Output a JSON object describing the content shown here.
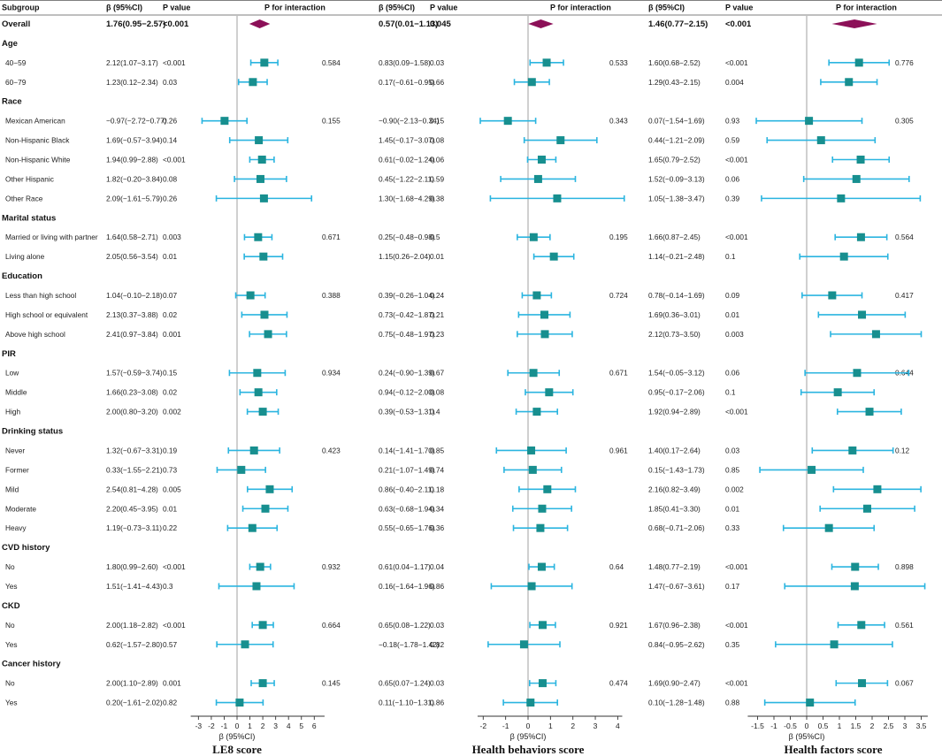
{
  "headers": {
    "subgroup": "Subgroup",
    "beta": "β  (95%CI)",
    "pvalue": "P value",
    "interaction": "P for interaction"
  },
  "overall_label": "Overall",
  "x_axis_label": "β (95%CI)",
  "colors": {
    "marker": "#178f8f",
    "ci": "#2bb5e0",
    "diamond": "#8c1058",
    "refline": "#b0b0b0"
  },
  "chart_data": [
    {
      "type": "forest",
      "title": "LE8 score",
      "xlabel": "β (95%CI)",
      "xlim": [
        -3.6,
        6.8
      ],
      "ticks": [
        -3,
        -2,
        -1,
        0,
        1,
        2,
        3,
        4,
        5,
        6
      ],
      "tick_labels": [
        "-3",
        "-2",
        "-1",
        "0",
        "1",
        "2",
        "3",
        "4",
        "5",
        "6"
      ],
      "overall": {
        "text": "1.76(0.95−2.57)",
        "p": "<0.001",
        "est": 1.76,
        "lo": 0.95,
        "hi": 2.57
      },
      "rows": [
        {
          "text": "2.12(1.07−3.17)",
          "p": "<0.001",
          "pint": "0.584",
          "est": 2.12,
          "lo": 1.07,
          "hi": 3.17
        },
        {
          "text": "1.23(0.12−2.34)",
          "p": "0.03",
          "pint": "",
          "est": 1.23,
          "lo": 0.12,
          "hi": 2.34
        },
        {
          "text": "−0.97(−2.72−0.77)",
          "p": "0.26",
          "pint": "0.155",
          "est": -0.97,
          "lo": -2.72,
          "hi": 0.77
        },
        {
          "text": "1.69(−0.57−3.94)",
          "p": "0.14",
          "pint": "",
          "est": 1.69,
          "lo": -0.57,
          "hi": 3.94
        },
        {
          "text": "1.94(0.99−2.88)",
          "p": "<0.001",
          "pint": "",
          "est": 1.94,
          "lo": 0.99,
          "hi": 2.88
        },
        {
          "text": "1.82(−0.20−3.84)",
          "p": "0.08",
          "pint": "",
          "est": 1.82,
          "lo": -0.2,
          "hi": 3.84
        },
        {
          "text": "2.09(−1.61−5.79)",
          "p": "0.26",
          "pint": "",
          "est": 2.09,
          "lo": -1.61,
          "hi": 5.79
        },
        {
          "text": "1.64(0.58−2.71)",
          "p": "0.003",
          "pint": "0.671",
          "est": 1.64,
          "lo": 0.58,
          "hi": 2.71
        },
        {
          "text": "2.05(0.56−3.54)",
          "p": "0.01",
          "pint": "",
          "est": 2.05,
          "lo": 0.56,
          "hi": 3.54
        },
        {
          "text": "1.04(−0.10−2.18)",
          "p": "0.07",
          "pint": "0.388",
          "est": 1.04,
          "lo": -0.1,
          "hi": 2.18
        },
        {
          "text": "2.13(0.37−3.88)",
          "p": "0.02",
          "pint": "",
          "est": 2.13,
          "lo": 0.37,
          "hi": 3.88
        },
        {
          "text": "2.41(0.97−3.84)",
          "p": "0.001",
          "pint": "",
          "est": 2.41,
          "lo": 0.97,
          "hi": 3.84
        },
        {
          "text": "1.57(−0.59−3.74)",
          "p": "0.15",
          "pint": "0.934",
          "est": 1.57,
          "lo": -0.59,
          "hi": 3.74
        },
        {
          "text": "1.66(0.23−3.08)",
          "p": "0.02",
          "pint": "",
          "est": 1.66,
          "lo": 0.23,
          "hi": 3.08
        },
        {
          "text": "2.00(0.80−3.20)",
          "p": "0.002",
          "pint": "",
          "est": 2.0,
          "lo": 0.8,
          "hi": 3.2
        },
        {
          "text": "1.32(−0.67−3.31)",
          "p": "0.19",
          "pint": "0.423",
          "est": 1.32,
          "lo": -0.67,
          "hi": 3.31
        },
        {
          "text": "0.33(−1.55−2.21)",
          "p": "0.73",
          "pint": "",
          "est": 0.33,
          "lo": -1.55,
          "hi": 2.21
        },
        {
          "text": "2.54(0.81−4.28)",
          "p": "0.005",
          "pint": "",
          "est": 2.54,
          "lo": 0.81,
          "hi": 4.28
        },
        {
          "text": "2.20(0.45−3.95)",
          "p": "0.01",
          "pint": "",
          "est": 2.2,
          "lo": 0.45,
          "hi": 3.95
        },
        {
          "text": "1.19(−0.73−3.11)",
          "p": "0.22",
          "pint": "",
          "est": 1.19,
          "lo": -0.73,
          "hi": 3.11
        },
        {
          "text": "1.80(0.99−2.60)",
          "p": "<0.001",
          "pint": "0.932",
          "est": 1.8,
          "lo": 0.99,
          "hi": 2.6
        },
        {
          "text": "1.51(−1.41−4.43)",
          "p": "0.3",
          "pint": "",
          "est": 1.51,
          "lo": -1.41,
          "hi": 4.43
        },
        {
          "text": "2.00(1.18−2.82)",
          "p": "<0.001",
          "pint": "0.664",
          "est": 2.0,
          "lo": 1.18,
          "hi": 2.82
        },
        {
          "text": "0.62(−1.57−2.80)",
          "p": "0.57",
          "pint": "",
          "est": 0.62,
          "lo": -1.57,
          "hi": 2.8
        },
        {
          "text": "2.00(1.10−2.89)",
          "p": "0.001",
          "pint": "0.145",
          "est": 2.0,
          "lo": 1.1,
          "hi": 2.89
        },
        {
          "text": "0.20(−1.61−2.02)",
          "p": "0.82",
          "pint": "",
          "est": 0.2,
          "lo": -1.61,
          "hi": 2.02
        }
      ]
    },
    {
      "type": "forest",
      "title": "Health behaviors score",
      "xlabel": "β (95%CI)",
      "xlim": [
        -2.25,
        4.2
      ],
      "ticks": [
        -2,
        -1,
        0,
        1,
        2,
        3,
        4
      ],
      "tick_labels": [
        "-2",
        "-1",
        "0",
        "1",
        "2",
        "3",
        "4"
      ],
      "overall": {
        "text": "0.57(0.01−1.13)",
        "p": "0.045",
        "est": 0.57,
        "lo": 0.01,
        "hi": 1.13
      },
      "rows": [
        {
          "text": "0.83(0.09−1.58)",
          "p": "0.03",
          "pint": "0.533",
          "est": 0.83,
          "lo": 0.09,
          "hi": 1.58
        },
        {
          "text": "0.17(−0.61−0.95)",
          "p": "0.66",
          "pint": "",
          "est": 0.17,
          "lo": -0.61,
          "hi": 0.95
        },
        {
          "text": "−0.90(−2.13−0.34)",
          "p": "0.15",
          "pint": "0.343",
          "est": -0.9,
          "lo": -2.13,
          "hi": 0.34
        },
        {
          "text": "1.45(−0.17−3.07)",
          "p": "0.08",
          "pint": "",
          "est": 1.45,
          "lo": -0.17,
          "hi": 3.07
        },
        {
          "text": "0.61(−0.02−1.24)",
          "p": "0.06",
          "pint": "",
          "est": 0.61,
          "lo": -0.02,
          "hi": 1.24
        },
        {
          "text": "0.45(−1.22−2.11)",
          "p": "0.59",
          "pint": "",
          "est": 0.45,
          "lo": -1.22,
          "hi": 2.11
        },
        {
          "text": "1.30(−1.68−4.29)",
          "p": "0.38",
          "pint": "",
          "est": 1.3,
          "lo": -1.68,
          "hi": 4.29
        },
        {
          "text": "0.25(−0.48−0.98)",
          "p": "0.5",
          "pint": "0.195",
          "est": 0.25,
          "lo": -0.48,
          "hi": 0.98
        },
        {
          "text": "1.15(0.26−2.04)",
          "p": "0.01",
          "pint": "",
          "est": 1.15,
          "lo": 0.26,
          "hi": 2.04
        },
        {
          "text": "0.39(−0.26−1.04)",
          "p": "0.24",
          "pint": "0.724",
          "est": 0.39,
          "lo": -0.26,
          "hi": 1.04
        },
        {
          "text": "0.73(−0.42−1.87)",
          "p": "0.21",
          "pint": "",
          "est": 0.73,
          "lo": -0.42,
          "hi": 1.87
        },
        {
          "text": "0.75(−0.48−1.97)",
          "p": "0.23",
          "pint": "",
          "est": 0.75,
          "lo": -0.48,
          "hi": 1.97
        },
        {
          "text": "0.24(−0.90−1.39)",
          "p": "0.67",
          "pint": "0.671",
          "est": 0.24,
          "lo": -0.9,
          "hi": 1.39
        },
        {
          "text": "0.94(−0.12−2.00)",
          "p": "0.08",
          "pint": "",
          "est": 0.94,
          "lo": -0.12,
          "hi": 2.0
        },
        {
          "text": "0.39(−0.53−1.31)",
          "p": "0.4",
          "pint": "",
          "est": 0.39,
          "lo": -0.53,
          "hi": 1.31
        },
        {
          "text": "0.14(−1.41−1.70)",
          "p": "0.85",
          "pint": "0.961",
          "est": 0.14,
          "lo": -1.41,
          "hi": 1.7
        },
        {
          "text": "0.21(−1.07−1.49)",
          "p": "0.74",
          "pint": "",
          "est": 0.21,
          "lo": -1.07,
          "hi": 1.49
        },
        {
          "text": "0.86(−0.40−2.11)",
          "p": "0.18",
          "pint": "",
          "est": 0.86,
          "lo": -0.4,
          "hi": 2.11
        },
        {
          "text": "0.63(−0.68−1.94)",
          "p": "0.34",
          "pint": "",
          "est": 0.63,
          "lo": -0.68,
          "hi": 1.94
        },
        {
          "text": "0.55(−0.65−1.76)",
          "p": "0.36",
          "pint": "",
          "est": 0.55,
          "lo": -0.65,
          "hi": 1.76
        },
        {
          "text": "0.61(0.04−1.17)",
          "p": "0.04",
          "pint": "0.64",
          "est": 0.61,
          "lo": 0.04,
          "hi": 1.17
        },
        {
          "text": "0.16(−1.64−1.96)",
          "p": "0.86",
          "pint": "",
          "est": 0.16,
          "lo": -1.64,
          "hi": 1.96
        },
        {
          "text": "0.65(0.08−1.22)",
          "p": "0.03",
          "pint": "0.921",
          "est": 0.65,
          "lo": 0.08,
          "hi": 1.22
        },
        {
          "text": "−0.18(−1.78−1.42)",
          "p": "0.82",
          "pint": "",
          "est": -0.18,
          "lo": -1.78,
          "hi": 1.42
        },
        {
          "text": "0.65(0.07−1.24)",
          "p": "0.03",
          "pint": "0.474",
          "est": 0.65,
          "lo": 0.07,
          "hi": 1.24
        },
        {
          "text": "0.11(−1.10−1.31)",
          "p": "0.86",
          "pint": "",
          "est": 0.11,
          "lo": -1.1,
          "hi": 1.31
        }
      ]
    },
    {
      "type": "forest",
      "title": "Health factors score",
      "xlabel": "β (95%CI)",
      "xlim": [
        -1.8,
        3.7
      ],
      "ticks": [
        -1.5,
        -1,
        -0.5,
        0,
        0.5,
        1,
        1.5,
        2,
        2.5,
        3,
        3.5
      ],
      "tick_labels": [
        "-1.5",
        "-1",
        "-0.5",
        "0",
        "0.5",
        "1",
        "1.5",
        "2",
        "2.5",
        "3",
        "3.5"
      ],
      "overall": {
        "text": "1.46(0.77−2.15)",
        "p": "<0.001",
        "est": 1.46,
        "lo": 0.77,
        "hi": 2.15
      },
      "rows": [
        {
          "text": "1.60(0.68−2.52)",
          "p": "<0.001",
          "pint": "0.776",
          "est": 1.6,
          "lo": 0.68,
          "hi": 2.52
        },
        {
          "text": "1.29(0.43−2.15)",
          "p": "0.004",
          "pint": "",
          "est": 1.29,
          "lo": 0.43,
          "hi": 2.15
        },
        {
          "text": "0.07(−1.54−1.69)",
          "p": "0.93",
          "pint": "0.305",
          "est": 0.07,
          "lo": -1.54,
          "hi": 1.69
        },
        {
          "text": "0.44(−1.21−2.09)",
          "p": "0.59",
          "pint": "",
          "est": 0.44,
          "lo": -1.21,
          "hi": 2.09
        },
        {
          "text": "1.65(0.79−2.52)",
          "p": "<0.001",
          "pint": "",
          "est": 1.65,
          "lo": 0.79,
          "hi": 2.52
        },
        {
          "text": "1.52(−0.09−3.13)",
          "p": "0.06",
          "pint": "",
          "est": 1.52,
          "lo": -0.09,
          "hi": 3.13
        },
        {
          "text": "1.05(−1.38−3.47)",
          "p": "0.39",
          "pint": "",
          "est": 1.05,
          "lo": -1.38,
          "hi": 3.47
        },
        {
          "text": "1.66(0.87−2.45)",
          "p": "<0.001",
          "pint": "0.564",
          "est": 1.66,
          "lo": 0.87,
          "hi": 2.45
        },
        {
          "text": "1.14(−0.21−2.48)",
          "p": "0.1",
          "pint": "",
          "est": 1.14,
          "lo": -0.21,
          "hi": 2.48
        },
        {
          "text": "0.78(−0.14−1.69)",
          "p": "0.09",
          "pint": "0.417",
          "est": 0.78,
          "lo": -0.14,
          "hi": 1.69
        },
        {
          "text": "1.69(0.36−3.01)",
          "p": "0.01",
          "pint": "",
          "est": 1.69,
          "lo": 0.36,
          "hi": 3.01
        },
        {
          "text": "2.12(0.73−3.50)",
          "p": "0.003",
          "pint": "",
          "est": 2.12,
          "lo": 0.73,
          "hi": 3.5
        },
        {
          "text": "1.54(−0.05−3.12)",
          "p": "0.06",
          "pint": "0.644",
          "est": 1.54,
          "lo": -0.05,
          "hi": 3.12
        },
        {
          "text": "0.95(−0.17−2.06)",
          "p": "0.1",
          "pint": "",
          "est": 0.95,
          "lo": -0.17,
          "hi": 2.06
        },
        {
          "text": "1.92(0.94−2.89)",
          "p": "<0.001",
          "pint": "",
          "est": 1.92,
          "lo": 0.94,
          "hi": 2.89
        },
        {
          "text": "1.40(0.17−2.64)",
          "p": "0.03",
          "pint": "0.12",
          "est": 1.4,
          "lo": 0.17,
          "hi": 2.64
        },
        {
          "text": "0.15(−1.43−1.73)",
          "p": "0.85",
          "pint": "",
          "est": 0.15,
          "lo": -1.43,
          "hi": 1.73
        },
        {
          "text": "2.16(0.82−3.49)",
          "p": "0.002",
          "pint": "",
          "est": 2.16,
          "lo": 0.82,
          "hi": 3.49
        },
        {
          "text": "1.85(0.41−3.30)",
          "p": "0.01",
          "pint": "",
          "est": 1.85,
          "lo": 0.41,
          "hi": 3.3
        },
        {
          "text": "0.68(−0.71−2.06)",
          "p": "0.33",
          "pint": "",
          "est": 0.68,
          "lo": -0.71,
          "hi": 2.06
        },
        {
          "text": "1.48(0.77−2.19)",
          "p": "<0.001",
          "pint": "0.898",
          "est": 1.48,
          "lo": 0.77,
          "hi": 2.19
        },
        {
          "text": "1.47(−0.67−3.61)",
          "p": "0.17",
          "pint": "",
          "est": 1.47,
          "lo": -0.67,
          "hi": 3.61
        },
        {
          "text": "1.67(0.96−2.38)",
          "p": "<0.001",
          "pint": "0.561",
          "est": 1.67,
          "lo": 0.96,
          "hi": 2.38
        },
        {
          "text": "0.84(−0.95−2.62)",
          "p": "0.35",
          "pint": "",
          "est": 0.84,
          "lo": -0.95,
          "hi": 2.62
        },
        {
          "text": "1.69(0.90−2.47)",
          "p": "<0.001",
          "pint": "0.067",
          "est": 1.69,
          "lo": 0.9,
          "hi": 2.47
        },
        {
          "text": "0.10(−1.28−1.48)",
          "p": "0.88",
          "pint": "",
          "est": 0.1,
          "lo": -1.28,
          "hi": 1.48
        }
      ]
    }
  ],
  "subgroups": [
    {
      "group": "Age",
      "items": [
        "40−59",
        "60−79"
      ]
    },
    {
      "group": "Race",
      "items": [
        "Mexican American",
        "Non-Hispanic Black",
        "Non-Hispanic White",
        "Other Hispanic",
        "Other Race"
      ]
    },
    {
      "group": "Marital status",
      "items": [
        "Married or living with partner",
        "Living alone"
      ]
    },
    {
      "group": "Education",
      "items": [
        "Less than high school",
        "High school or equivalent",
        "Above high school"
      ]
    },
    {
      "group": "PIR",
      "items": [
        "Low",
        "Middle",
        "High"
      ]
    },
    {
      "group": "Drinking status",
      "items": [
        "Never",
        "Former",
        "Mild",
        "Moderate",
        "Heavy"
      ]
    },
    {
      "group": "CVD history",
      "items": [
        "No",
        "Yes"
      ]
    },
    {
      "group": "CKD",
      "items": [
        "No",
        "Yes"
      ]
    },
    {
      "group": "Cancer history",
      "items": [
        "No",
        "Yes"
      ]
    }
  ]
}
